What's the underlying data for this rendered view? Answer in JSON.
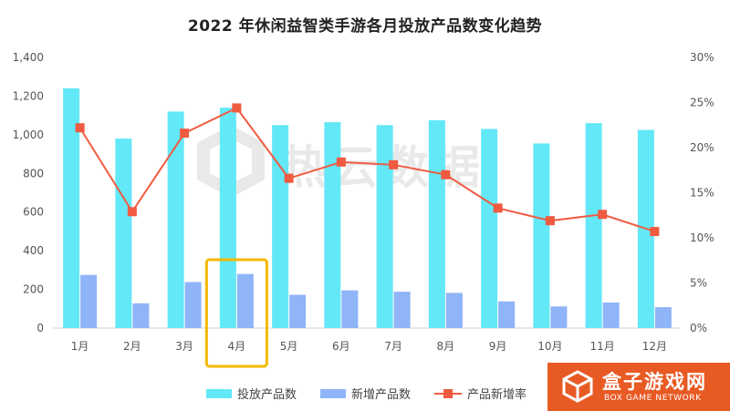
{
  "chart_data": {
    "type": "bar+line",
    "title": "2022 年休闲益智类手游各月投放产品数变化趋势",
    "categories": [
      "1月",
      "2月",
      "3月",
      "4月",
      "5月",
      "6月",
      "7月",
      "8月",
      "9月",
      "10月",
      "11月",
      "12月"
    ],
    "series": [
      {
        "name": "投放产品数",
        "type": "bar",
        "axis": "left",
        "color": "#63e8f7",
        "values": [
          1240,
          980,
          1120,
          1140,
          1050,
          1065,
          1050,
          1075,
          1030,
          955,
          1060,
          1025
        ]
      },
      {
        "name": "新增产品数",
        "type": "bar",
        "axis": "left",
        "color": "#8fb4f8",
        "values": [
          275,
          128,
          238,
          280,
          172,
          195,
          188,
          182,
          138,
          112,
          132,
          108
        ]
      },
      {
        "name": "产品新增率",
        "type": "line",
        "axis": "right",
        "color": "#f05a40",
        "values": [
          0.222,
          0.129,
          0.216,
          0.244,
          0.166,
          0.184,
          0.181,
          0.17,
          0.133,
          0.119,
          0.126,
          0.107
        ]
      }
    ],
    "y_left": {
      "min": 0,
      "max": 1400,
      "ticks": [
        "0",
        "200",
        "400",
        "600",
        "800",
        "1,000",
        "1,200",
        "1,400"
      ]
    },
    "y_right": {
      "min": 0,
      "max": 0.3,
      "ticks": [
        "0%",
        "5%",
        "10%",
        "15%",
        "20%",
        "25%",
        "30%"
      ]
    },
    "grid": false,
    "legend_position": "bottom",
    "highlight": {
      "category": "4月",
      "color": "#f5b800"
    }
  },
  "watermark": {
    "text": "热云数据"
  },
  "badge": {
    "name": "盒子游戏网",
    "sub": "BOX GAME NETWORK",
    "icon": "box-logo-icon"
  }
}
